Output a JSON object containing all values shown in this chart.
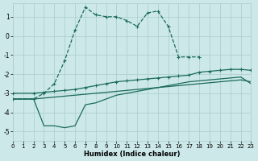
{
  "xlabel": "Humidex (Indice chaleur)",
  "bg_color": "#cce8e8",
  "grid_color": "#aacccc",
  "line_color": "#1a6b5a",
  "xlim": [
    0,
    23
  ],
  "ylim": [
    -5.5,
    1.7
  ],
  "xticks": [
    0,
    1,
    2,
    3,
    4,
    5,
    6,
    7,
    8,
    9,
    10,
    11,
    12,
    13,
    14,
    15,
    16,
    17,
    18,
    19,
    20,
    21,
    22,
    23
  ],
  "yticks": [
    -5,
    -4,
    -3,
    -2,
    -1,
    0,
    1
  ],
  "curve1_x": [
    0,
    2,
    3,
    4,
    5,
    6,
    7,
    8,
    9,
    10,
    11,
    12,
    13,
    14,
    15,
    16,
    17,
    18
  ],
  "curve1_y": [
    -3.3,
    -3.3,
    -3.0,
    -2.5,
    -1.3,
    0.3,
    1.5,
    1.1,
    1.0,
    1.0,
    0.8,
    0.5,
    1.2,
    1.3,
    0.5,
    -1.1,
    -1.1,
    -1.1
  ],
  "curve2_x": [
    0,
    2,
    3,
    4,
    5,
    6,
    7,
    8,
    9,
    10,
    11,
    12,
    13,
    14,
    15,
    16,
    17,
    18,
    19,
    20,
    21,
    22,
    23
  ],
  "curve2_y": [
    -3.0,
    -3.0,
    -2.95,
    -2.9,
    -2.85,
    -2.8,
    -2.7,
    -2.6,
    -2.5,
    -2.4,
    -2.35,
    -2.3,
    -2.25,
    -2.2,
    -2.15,
    -2.1,
    -2.05,
    -1.9,
    -1.85,
    -1.8,
    -1.75,
    -1.75,
    -1.8
  ],
  "curve3_x": [
    0,
    2,
    3,
    4,
    5,
    6,
    7,
    8,
    9,
    10,
    11,
    12,
    13,
    14,
    15,
    16,
    17,
    18,
    19,
    20,
    21,
    22,
    23
  ],
  "curve3_y": [
    -3.3,
    -3.3,
    -3.25,
    -3.2,
    -3.15,
    -3.1,
    -3.05,
    -3.0,
    -2.95,
    -2.9,
    -2.85,
    -2.8,
    -2.75,
    -2.7,
    -2.65,
    -2.6,
    -2.55,
    -2.5,
    -2.45,
    -2.4,
    -2.35,
    -2.3,
    -2.4
  ],
  "curve4_x": [
    0,
    2,
    3,
    4,
    5,
    6,
    7,
    8,
    9,
    10,
    11,
    12,
    13,
    14,
    15,
    16,
    17,
    18,
    19,
    20,
    21,
    22,
    23
  ],
  "curve4_y": [
    -3.3,
    -3.3,
    -4.7,
    -4.7,
    -4.8,
    -4.7,
    -3.6,
    -3.5,
    -3.3,
    -3.1,
    -3.0,
    -2.9,
    -2.8,
    -2.7,
    -2.6,
    -2.5,
    -2.4,
    -2.35,
    -2.3,
    -2.25,
    -2.2,
    -2.15,
    -2.5
  ]
}
